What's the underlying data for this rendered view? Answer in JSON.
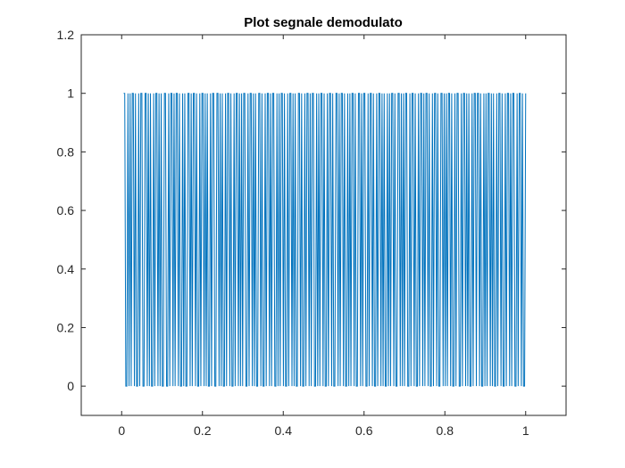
{
  "chart_data": {
    "type": "line",
    "title": "Plot segnale demodulato",
    "xlabel": "",
    "ylabel": "",
    "xlim": [
      -0.1,
      1.1
    ],
    "ylim": [
      -0.1,
      1.2
    ],
    "x_ticks": [
      0,
      0.2,
      0.4,
      0.6,
      0.8,
      1
    ],
    "x_tick_labels": [
      "0",
      "0.2",
      "0.4",
      "0.6",
      "0.8",
      "1"
    ],
    "y_ticks": [
      0,
      0.2,
      0.4,
      0.6,
      0.8,
      1,
      1.2
    ],
    "y_tick_labels": [
      "0",
      "0.2",
      "0.4",
      "0.6",
      "0.8",
      "1",
      "1.2"
    ],
    "grid": false,
    "box": true,
    "series": [
      {
        "color": "#0072BD",
        "x_start": 0.005,
        "x_end": 1.0,
        "sample_count": 400,
        "levels": [
          0,
          1
        ],
        "bits": "1100101011010010110011010100101101010011001011010110100101001101011010010110101001011001101010010110100101101010110010110101001101001011010110010101101001011010100110100101101011001010110100101101001101011010010101101001101011001011010010110101001010110100110101011001011010010110101101001011010011010101101001011001011010100101101101001010110101001011010010110101100101101001"
      }
    ]
  },
  "colors": {
    "line": "#0072BD",
    "axes": "#262626",
    "background": "#ffffff"
  }
}
